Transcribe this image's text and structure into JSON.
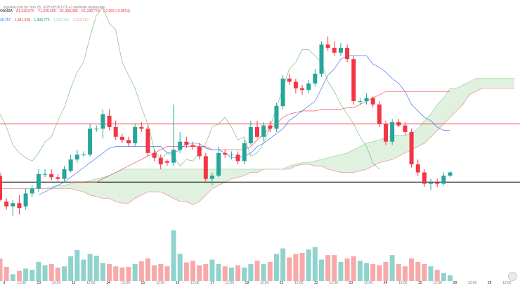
{
  "header": {
    "source_line": "…ingView.com for Tem 28, 2025 08:28 UTC+3 tarihinde oluşturuldu",
    "symbol": "OANDA",
    "ohlc": [
      "A1,339,670",
      "Y1,340,605",
      "D1,338,085",
      "K1,338,770",
      "(-0.955 (-0.05%))"
    ],
    "ichimoku": [
      "40,757",
      "1,381,528",
      "1,338,770",
      "1,300,143",
      "1,316,412"
    ]
  },
  "colors": {
    "up": "#26a69a",
    "down": "#f23645",
    "up_volume": "#8fd3cc",
    "down_volume": "#f7a9a9",
    "tenkan": "#2962ff",
    "kijun": "#f23645",
    "lagging": "#43a047",
    "cloud_bull": "#a5d6a7",
    "cloud_bear": "#ef9a9a",
    "support_line": "#000000"
  },
  "chart_data": {
    "type": "candlestick",
    "title": "",
    "xlabel": "",
    "ylabel": "",
    "x_ticks": [
      "9",
      "12:00",
      "10",
      "12:00",
      "11",
      "12:00",
      "14",
      "12:00",
      "15",
      "12:00",
      "16",
      "12:00",
      "17",
      "12:00",
      "18",
      "12:00",
      "21",
      "12:00",
      "22",
      "12:00",
      "23",
      "12:00",
      "24",
      "12:00",
      "25",
      "12:00",
      "28",
      "12:00",
      "29",
      "12:00"
    ],
    "y_scale_note": "price axis not visible in screenshot",
    "ylim": [
      0,
      100
    ],
    "candles": [
      {
        "o": 26,
        "c": 11,
        "h": 28,
        "l": 10
      },
      {
        "o": 10,
        "c": 7,
        "h": 12,
        "l": 5
      },
      {
        "o": 7,
        "c": 9,
        "h": 11,
        "l": 1
      },
      {
        "o": 9,
        "c": 6,
        "h": 14,
        "l": 2
      },
      {
        "o": 7,
        "c": 15,
        "h": 18,
        "l": 5
      },
      {
        "o": 15,
        "c": 18,
        "h": 20,
        "l": 13
      },
      {
        "o": 18,
        "c": 27,
        "h": 30,
        "l": 16
      },
      {
        "o": 27,
        "c": 27,
        "h": 30,
        "l": 25
      },
      {
        "o": 27,
        "c": 25,
        "h": 30,
        "l": 23
      },
      {
        "o": 25,
        "c": 24,
        "h": 27,
        "l": 22
      },
      {
        "o": 24,
        "c": 30,
        "h": 32,
        "l": 22
      },
      {
        "o": 29,
        "c": 36,
        "h": 39,
        "l": 28
      },
      {
        "o": 36,
        "c": 39,
        "h": 42,
        "l": 34
      },
      {
        "o": 39,
        "c": 39,
        "h": 41,
        "l": 38
      },
      {
        "o": 39,
        "c": 55,
        "h": 58,
        "l": 38
      },
      {
        "o": 55,
        "c": 55,
        "h": 57,
        "l": 53
      },
      {
        "o": 55,
        "c": 64,
        "h": 67,
        "l": 49
      },
      {
        "o": 63,
        "c": 56,
        "h": 67,
        "l": 54
      },
      {
        "o": 56,
        "c": 50,
        "h": 60,
        "l": 48
      },
      {
        "o": 50,
        "c": 48,
        "h": 52,
        "l": 46
      },
      {
        "o": 48,
        "c": 46,
        "h": 50,
        "l": 44
      },
      {
        "o": 46,
        "c": 56,
        "h": 58,
        "l": 44
      },
      {
        "o": 56,
        "c": 55,
        "h": 59,
        "l": 53
      },
      {
        "o": 55,
        "c": 40,
        "h": 57,
        "l": 38
      },
      {
        "o": 40,
        "c": 37,
        "h": 42,
        "l": 35
      },
      {
        "o": 37,
        "c": 33,
        "h": 39,
        "l": 30
      },
      {
        "o": 35,
        "c": 34,
        "h": 36,
        "l": 32
      },
      {
        "o": 34,
        "c": 42,
        "h": 70,
        "l": 32
      },
      {
        "o": 42,
        "c": 47,
        "h": 53,
        "l": 40
      },
      {
        "o": 47,
        "c": 45,
        "h": 50,
        "l": 43
      },
      {
        "o": 45,
        "c": 44,
        "h": 47,
        "l": 42
      },
      {
        "o": 44,
        "c": 38,
        "h": 46,
        "l": 36
      },
      {
        "o": 38,
        "c": 24,
        "h": 40,
        "l": 22
      },
      {
        "o": 24,
        "c": 26,
        "h": 28,
        "l": 20
      },
      {
        "o": 26,
        "c": 40,
        "h": 44,
        "l": 25
      },
      {
        "o": 40,
        "c": 39,
        "h": 42,
        "l": 37
      },
      {
        "o": 39,
        "c": 39,
        "h": 41,
        "l": 36
      },
      {
        "o": 39,
        "c": 35,
        "h": 41,
        "l": 33
      },
      {
        "o": 35,
        "c": 46,
        "h": 48,
        "l": 33
      },
      {
        "o": 46,
        "c": 56,
        "h": 60,
        "l": 45
      },
      {
        "o": 56,
        "c": 50,
        "h": 60,
        "l": 49
      },
      {
        "o": 50,
        "c": 57,
        "h": 59,
        "l": 47
      },
      {
        "o": 57,
        "c": 55,
        "h": 60,
        "l": 53
      },
      {
        "o": 55,
        "c": 69,
        "h": 71,
        "l": 53
      },
      {
        "o": 69,
        "c": 86,
        "h": 88,
        "l": 67
      },
      {
        "o": 86,
        "c": 84,
        "h": 89,
        "l": 82
      },
      {
        "o": 84,
        "c": 80,
        "h": 86,
        "l": 77
      },
      {
        "o": 80,
        "c": 79,
        "h": 82,
        "l": 76
      },
      {
        "o": 79,
        "c": 83,
        "h": 85,
        "l": 77
      },
      {
        "o": 83,
        "c": 89,
        "h": 92,
        "l": 81
      },
      {
        "o": 89,
        "c": 107,
        "h": 109,
        "l": 87
      },
      {
        "o": 107,
        "c": 105,
        "h": 112,
        "l": 103
      },
      {
        "o": 105,
        "c": 102,
        "h": 109,
        "l": 100
      },
      {
        "o": 102,
        "c": 105,
        "h": 108,
        "l": 100
      },
      {
        "o": 105,
        "c": 98,
        "h": 107,
        "l": 96
      },
      {
        "o": 98,
        "c": 72,
        "h": 100,
        "l": 70
      },
      {
        "o": 72,
        "c": 72,
        "h": 74,
        "l": 70
      },
      {
        "o": 72,
        "c": 74,
        "h": 77,
        "l": 70
      },
      {
        "o": 74,
        "c": 70,
        "h": 75,
        "l": 68
      },
      {
        "o": 70,
        "c": 58,
        "h": 72,
        "l": 56
      },
      {
        "o": 58,
        "c": 47,
        "h": 60,
        "l": 45
      },
      {
        "o": 47,
        "c": 59,
        "h": 61,
        "l": 45
      },
      {
        "o": 59,
        "c": 57,
        "h": 61,
        "l": 56
      },
      {
        "o": 57,
        "c": 53,
        "h": 59,
        "l": 51
      },
      {
        "o": 53,
        "c": 33,
        "h": 55,
        "l": 31
      },
      {
        "o": 33,
        "c": 28,
        "h": 36,
        "l": 26
      },
      {
        "o": 28,
        "c": 21,
        "h": 30,
        "l": 19
      },
      {
        "o": 21,
        "c": 22,
        "h": 24,
        "l": 17
      },
      {
        "o": 22,
        "c": 21,
        "h": 24,
        "l": 19
      },
      {
        "o": 21,
        "c": 26,
        "h": 28,
        "l": 20
      },
      {
        "o": 26,
        "c": 28,
        "h": 29,
        "l": 25
      }
    ],
    "volume": [
      40,
      25,
      12,
      18,
      22,
      20,
      34,
      28,
      30,
      24,
      26,
      44,
      55,
      38,
      48,
      45,
      32,
      30,
      26,
      24,
      25,
      30,
      35,
      40,
      28,
      30,
      26,
      90,
      48,
      33,
      36,
      28,
      30,
      38,
      30,
      26,
      24,
      28,
      24,
      30,
      36,
      30,
      34,
      48,
      58,
      42,
      48,
      50,
      56,
      60,
      38,
      46,
      46,
      34,
      40,
      44,
      36,
      32,
      30,
      28,
      34,
      46,
      30,
      26,
      40,
      34,
      30,
      26,
      20,
      14,
      10
    ],
    "tenkan": [
      null,
      null,
      null,
      null,
      null,
      null,
      14,
      16,
      18,
      20,
      22,
      25,
      28,
      31,
      34,
      37,
      40,
      43,
      44,
      44,
      44,
      44,
      44,
      44,
      44,
      44,
      40,
      40,
      42,
      46,
      46,
      46,
      43,
      42,
      42,
      40,
      37,
      37,
      38,
      40,
      44,
      46,
      49,
      52,
      55,
      60,
      63,
      66,
      69,
      72,
      80,
      88,
      92,
      98,
      100,
      100,
      100,
      100,
      95,
      93,
      90,
      86,
      83,
      78,
      70,
      66,
      62,
      60,
      56,
      54,
      54
    ],
    "kijun": [
      null,
      null,
      null,
      null,
      null,
      null,
      null,
      null,
      null,
      null,
      null,
      22,
      22,
      22,
      22,
      22,
      24,
      26,
      28,
      30,
      32,
      34,
      36,
      38,
      40,
      42,
      44,
      44,
      44,
      44,
      44,
      44,
      44,
      42,
      42,
      42,
      42,
      42,
      42,
      44,
      48,
      52,
      55,
      58,
      62,
      64,
      65,
      66,
      66,
      66,
      67,
      67,
      67,
      67,
      68,
      68,
      70,
      72,
      74,
      76,
      78,
      78,
      78,
      78,
      78,
      78,
      78,
      78,
      78,
      78,
      78
    ],
    "lagging": [
      64,
      56,
      45,
      40,
      37,
      35,
      40,
      47,
      50,
      60,
      68,
      80,
      90,
      96,
      112,
      125,
      130,
      120,
      116,
      96,
      88,
      80,
      68,
      58,
      42,
      36,
      40,
      38,
      32,
      36,
      35,
      40,
      46,
      56,
      58,
      62,
      56,
      48,
      50,
      38,
      40,
      46,
      56,
      68,
      80,
      92,
      96,
      104,
      104,
      100,
      96,
      84,
      78,
      70,
      64,
      58,
      50,
      44,
      34,
      30
    ],
    "cloud_a": [
      18,
      18,
      18,
      18,
      18,
      18,
      18,
      18,
      19,
      20,
      20,
      21,
      22,
      22,
      23,
      24,
      25,
      26,
      28,
      30,
      30,
      30,
      30,
      30,
      30,
      30,
      30,
      30,
      30,
      30,
      30,
      30,
      30,
      30,
      30,
      30,
      30,
      30,
      30,
      30,
      30,
      30,
      30,
      30,
      30,
      32,
      33,
      34,
      34,
      35,
      36,
      37,
      38,
      39,
      40,
      42,
      44,
      46,
      47,
      48,
      50,
      51,
      51,
      51,
      52,
      55,
      60,
      64,
      70,
      74,
      80,
      80,
      82,
      84,
      86,
      86,
      86,
      86,
      86,
      86,
      86
    ],
    "cloud_b": [
      18,
      18,
      18,
      18,
      18,
      18,
      18,
      18,
      18,
      18,
      18,
      18,
      17,
      16,
      14,
      13,
      12,
      12,
      10,
      9,
      9,
      12,
      14,
      16,
      16,
      16,
      14,
      12,
      10,
      10,
      8,
      10,
      14,
      18,
      20,
      22,
      24,
      25,
      26,
      28,
      28,
      30,
      30,
      30,
      30,
      30,
      32,
      33,
      33,
      32,
      32,
      30,
      29,
      28,
      28,
      28,
      29,
      30,
      32,
      34,
      35,
      36,
      38,
      40,
      42,
      44,
      46,
      50,
      54,
      58,
      62,
      66,
      70,
      76,
      78,
      80,
      80,
      80,
      80,
      80,
      80
    ],
    "horizontal_lines": [
      {
        "name": "resistance",
        "value": 58
      },
      {
        "name": "support",
        "value": 22
      }
    ]
  }
}
